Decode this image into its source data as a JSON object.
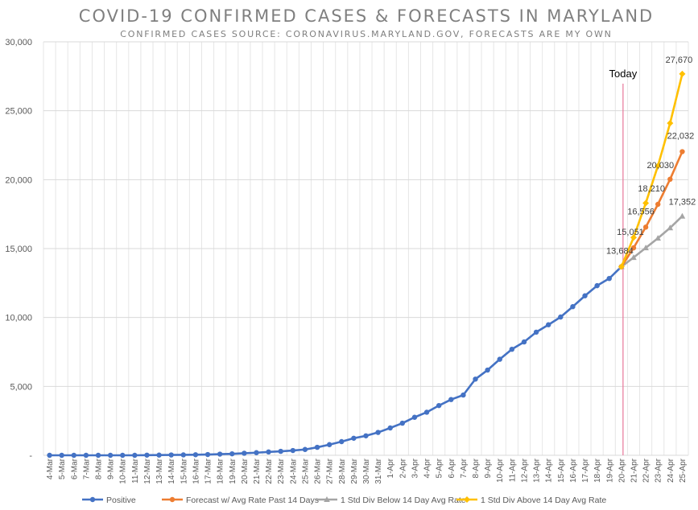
{
  "chart_data": {
    "type": "line",
    "title": "COVID-19 CONFIRMED CASES & FORECASTS IN MARYLAND",
    "subtitle": "CONFIRMED CASES SOURCE: CORONAVIRUS.MARYLAND.GOV, FORECASTS ARE MY OWN",
    "xlabel": "",
    "ylabel": "",
    "ylim": [
      0,
      30000
    ],
    "yticks": [
      0,
      5000,
      10000,
      15000,
      20000,
      25000,
      30000
    ],
    "ytick_labels": [
      "-",
      "5,000",
      "10,000",
      "15,000",
      "20,000",
      "25,000",
      "30,000"
    ],
    "grid": true,
    "legend_position": "bottom",
    "categories": [
      "4-Mar",
      "5-Mar",
      "6-Mar",
      "7-Mar",
      "8-Mar",
      "9-Mar",
      "10-Mar",
      "11-Mar",
      "12-Mar",
      "13-Mar",
      "14-Mar",
      "15-Mar",
      "16-Mar",
      "17-Mar",
      "18-Mar",
      "19-Mar",
      "20-Mar",
      "21-Mar",
      "22-Mar",
      "23-Mar",
      "24-Mar",
      "25-Mar",
      "26-Mar",
      "27-Mar",
      "28-Mar",
      "29-Mar",
      "30-Mar",
      "31-Mar",
      "1-Apr",
      "2-Apr",
      "3-Apr",
      "4-Apr",
      "5-Apr",
      "6-Apr",
      "7-Apr",
      "8-Apr",
      "9-Apr",
      "10-Apr",
      "11-Apr",
      "12-Apr",
      "13-Apr",
      "14-Apr",
      "15-Apr",
      "16-Apr",
      "17-Apr",
      "18-Apr",
      "19-Apr",
      "20-Apr",
      "21-Apr",
      "22-Apr",
      "23-Apr",
      "24-Apr",
      "25-Apr"
    ],
    "annotation": {
      "label": "Today",
      "category": "20-Apr"
    },
    "series": [
      {
        "name": "Positive",
        "color": "#4472c4",
        "marker": "circle",
        "values": [
          0,
          0,
          0,
          0,
          0,
          0,
          0,
          0,
          12,
          17,
          26,
          31,
          41,
          57,
          85,
          107,
          149,
          190,
          244,
          288,
          349,
          423,
          580,
          774,
          992,
          1239,
          1413,
          1660,
          1985,
          2331,
          2758,
          3125,
          3609,
          4045,
          4371,
          5529,
          6185,
          6968,
          7694,
          8225,
          8936,
          9472,
          10032,
          10784,
          11572,
          12308,
          12830,
          13684,
          null,
          null,
          null,
          null,
          null
        ],
        "labels": []
      },
      {
        "name": "Forecast w/ Avg Rate Past 14 Days",
        "color": "#ed7d31",
        "marker": "circle",
        "values": [
          null,
          null,
          null,
          null,
          null,
          null,
          null,
          null,
          null,
          null,
          null,
          null,
          null,
          null,
          null,
          null,
          null,
          null,
          null,
          null,
          null,
          null,
          null,
          null,
          null,
          null,
          null,
          null,
          null,
          null,
          null,
          null,
          null,
          null,
          null,
          null,
          null,
          null,
          null,
          null,
          null,
          null,
          null,
          null,
          null,
          null,
          null,
          13684,
          15051,
          16556,
          18210,
          20030,
          22032
        ],
        "labels": [
          {
            "i": 47,
            "text": "13,684"
          },
          {
            "i": 48,
            "text": "15,051"
          },
          {
            "i": 49,
            "text": "16,556"
          },
          {
            "i": 50,
            "text": "18,210"
          },
          {
            "i": 51,
            "text": "20,030"
          },
          {
            "i": 52,
            "text": "22,032"
          }
        ]
      },
      {
        "name": "1 Std Div Below 14 Day Avg Rate",
        "color": "#a5a5a5",
        "marker": "triangle",
        "values": [
          null,
          null,
          null,
          null,
          null,
          null,
          null,
          null,
          null,
          null,
          null,
          null,
          null,
          null,
          null,
          null,
          null,
          null,
          null,
          null,
          null,
          null,
          null,
          null,
          null,
          null,
          null,
          null,
          null,
          null,
          null,
          null,
          null,
          null,
          null,
          null,
          null,
          null,
          null,
          null,
          null,
          null,
          null,
          null,
          null,
          null,
          null,
          13684,
          14350,
          15050,
          15750,
          16500,
          17352
        ],
        "labels": [
          {
            "i": 52,
            "text": "17,352"
          }
        ]
      },
      {
        "name": "1 Std Div Above 14 Day Avg Rate",
        "color": "#ffc000",
        "marker": "diamond",
        "values": [
          null,
          null,
          null,
          null,
          null,
          null,
          null,
          null,
          null,
          null,
          null,
          null,
          null,
          null,
          null,
          null,
          null,
          null,
          null,
          null,
          null,
          null,
          null,
          null,
          null,
          null,
          null,
          null,
          null,
          null,
          null,
          null,
          null,
          null,
          null,
          null,
          null,
          null,
          null,
          null,
          null,
          null,
          null,
          null,
          null,
          null,
          null,
          13684,
          15800,
          18300,
          21000,
          24100,
          27670
        ],
        "labels": [
          {
            "i": 52,
            "text": "27,670"
          }
        ]
      }
    ]
  }
}
